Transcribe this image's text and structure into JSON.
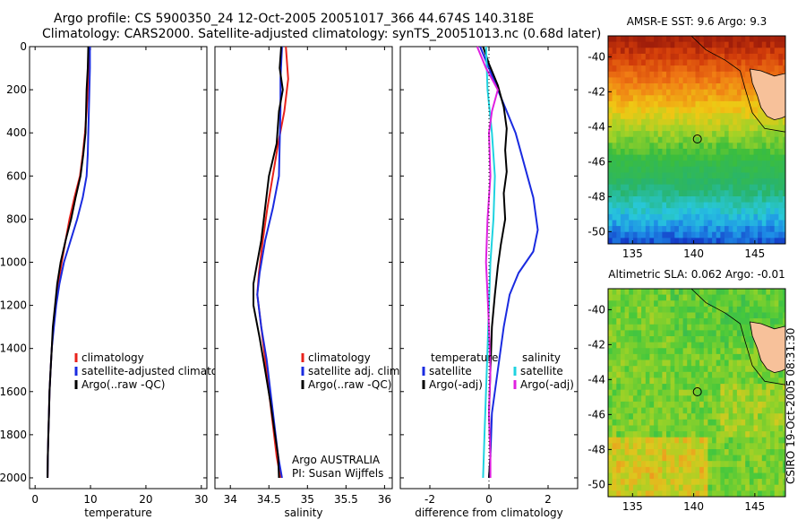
{
  "header": {
    "title_line1": "Argo profile: CS 5900350_24 12-Oct-2005 20051017_366 44.674S 140.318E",
    "title_line2": "Climatology: CARS2000. Satellite-adjusted climatology: synTS_20051013.nc (0.68d later)"
  },
  "colors": {
    "climatology": "#e8221b",
    "satellite": "#1a2be0",
    "argo": "#000000",
    "sat_salinity": "#1fd3e0",
    "argo_salinity": "#e020e0"
  },
  "chart_data": [
    {
      "type": "line",
      "id": "temperature",
      "xlabel": "temperature",
      "xlim": [
        -1,
        31
      ],
      "ylim": [
        0,
        2050
      ],
      "xticks": [
        0,
        10,
        20,
        30
      ],
      "yticks": [
        0,
        200,
        400,
        600,
        800,
        1000,
        1200,
        1400,
        1600,
        1800,
        2000
      ],
      "legend": [
        "climatology",
        "satellite-adjusted climatology",
        "Argo(..raw -QC)"
      ],
      "series": [
        {
          "name": "climatology",
          "color": "#e8221b",
          "points": [
            [
              9.7,
              0
            ],
            [
              9.6,
              100
            ],
            [
              9.5,
              200
            ],
            [
              9.3,
              300
            ],
            [
              9.0,
              400
            ],
            [
              8.6,
              500
            ],
            [
              8.1,
              600
            ],
            [
              7.1,
              700
            ],
            [
              6.2,
              800
            ],
            [
              5.5,
              900
            ],
            [
              4.8,
              1000
            ],
            [
              4.2,
              1100
            ],
            [
              3.7,
              1200
            ],
            [
              3.3,
              1300
            ],
            [
              3.0,
              1400
            ],
            [
              2.8,
              1500
            ],
            [
              2.6,
              1600
            ],
            [
              2.5,
              1700
            ],
            [
              2.4,
              1800
            ],
            [
              2.3,
              1900
            ],
            [
              2.25,
              2000
            ]
          ]
        },
        {
          "name": "satellite-adjusted climatology",
          "color": "#1a2be0",
          "points": [
            [
              9.9,
              0
            ],
            [
              9.9,
              100
            ],
            [
              9.8,
              200
            ],
            [
              9.7,
              300
            ],
            [
              9.6,
              400
            ],
            [
              9.5,
              500
            ],
            [
              9.3,
              600
            ],
            [
              8.6,
              700
            ],
            [
              7.6,
              800
            ],
            [
              6.4,
              900
            ],
            [
              5.2,
              1000
            ],
            [
              4.4,
              1100
            ],
            [
              3.8,
              1200
            ],
            [
              3.4,
              1300
            ],
            [
              3.0,
              1400
            ],
            [
              2.8,
              1500
            ],
            [
              2.6,
              1600
            ],
            [
              2.5,
              1700
            ],
            [
              2.4,
              1800
            ],
            [
              2.3,
              1900
            ],
            [
              2.25,
              2000
            ]
          ]
        },
        {
          "name": "Argo(..raw -QC)",
          "color": "#000000",
          "points": [
            [
              9.6,
              0
            ],
            [
              9.5,
              100
            ],
            [
              9.3,
              200
            ],
            [
              9.2,
              300
            ],
            [
              9.1,
              400
            ],
            [
              8.7,
              500
            ],
            [
              8.2,
              600
            ],
            [
              7.3,
              700
            ],
            [
              6.5,
              800
            ],
            [
              5.5,
              900
            ],
            [
              4.6,
              1000
            ],
            [
              4.0,
              1100
            ],
            [
              3.6,
              1200
            ],
            [
              3.2,
              1300
            ],
            [
              3.0,
              1400
            ],
            [
              2.8,
              1500
            ],
            [
              2.6,
              1600
            ],
            [
              2.5,
              1700
            ],
            [
              2.4,
              1800
            ],
            [
              2.3,
              1900
            ],
            [
              2.25,
              2000
            ]
          ]
        }
      ]
    },
    {
      "type": "line",
      "id": "salinity",
      "xlabel": "salinity",
      "xlim": [
        33.8,
        36.1
      ],
      "ylim": [
        0,
        2050
      ],
      "xticks": [
        34,
        34.5,
        35,
        35.5,
        36
      ],
      "legend": [
        "climatology",
        "satellite adj. clim.",
        "Argo(..raw -QC)"
      ],
      "annotation": [
        "Argo AUSTRALIA",
        "PI: Susan Wijffels"
      ],
      "series": [
        {
          "name": "climatology",
          "color": "#e8221b",
          "points": [
            [
              34.72,
              0
            ],
            [
              34.75,
              150
            ],
            [
              34.7,
              300
            ],
            [
              34.62,
              450
            ],
            [
              34.55,
              600
            ],
            [
              34.48,
              750
            ],
            [
              34.42,
              900
            ],
            [
              34.37,
              1050
            ],
            [
              34.35,
              1150
            ],
            [
              34.4,
              1300
            ],
            [
              34.45,
              1450
            ],
            [
              34.5,
              1600
            ],
            [
              34.55,
              1750
            ],
            [
              34.6,
              1900
            ],
            [
              34.65,
              2000
            ]
          ]
        },
        {
          "name": "satellite adj. clim.",
          "color": "#1a2be0",
          "points": [
            [
              34.67,
              0
            ],
            [
              34.65,
              150
            ],
            [
              34.65,
              300
            ],
            [
              34.64,
              450
            ],
            [
              34.63,
              600
            ],
            [
              34.55,
              750
            ],
            [
              34.45,
              900
            ],
            [
              34.38,
              1050
            ],
            [
              34.35,
              1150
            ],
            [
              34.4,
              1300
            ],
            [
              34.47,
              1450
            ],
            [
              34.52,
              1600
            ],
            [
              34.57,
              1750
            ],
            [
              34.62,
              1900
            ],
            [
              34.67,
              2000
            ]
          ]
        },
        {
          "name": "Argo(..raw -QC)",
          "color": "#000000",
          "points": [
            [
              34.66,
              0
            ],
            [
              34.64,
              100
            ],
            [
              34.68,
              200
            ],
            [
              34.63,
              300
            ],
            [
              34.6,
              450
            ],
            [
              34.5,
              600
            ],
            [
              34.45,
              750
            ],
            [
              34.4,
              900
            ],
            [
              34.35,
              1000
            ],
            [
              34.3,
              1100
            ],
            [
              34.3,
              1200
            ],
            [
              34.38,
              1350
            ],
            [
              34.45,
              1500
            ],
            [
              34.52,
              1650
            ],
            [
              34.58,
              1800
            ],
            [
              34.62,
              1900
            ],
            [
              34.63,
              2000
            ]
          ]
        }
      ]
    },
    {
      "type": "line",
      "id": "difference",
      "xlabel": "difference from climatology",
      "xlim": [
        -3,
        3
      ],
      "ylim": [
        0,
        2050
      ],
      "xticks": [
        -2,
        0,
        2
      ],
      "legend_left_title": "temperature",
      "legend_right_title": "salinity",
      "legend_left": [
        "satellite",
        "Argo(-adj)"
      ],
      "legend_right": [
        "satellite",
        "Argo(-adj)"
      ],
      "series": [
        {
          "name": "temperature satellite",
          "color": "#1a2be0",
          "points": [
            [
              -0.3,
              0
            ],
            [
              0.0,
              100
            ],
            [
              0.3,
              200
            ],
            [
              0.6,
              300
            ],
            [
              0.9,
              400
            ],
            [
              1.1,
              500
            ],
            [
              1.3,
              600
            ],
            [
              1.5,
              700
            ],
            [
              1.65,
              850
            ],
            [
              1.5,
              950
            ],
            [
              1.0,
              1050
            ],
            [
              0.7,
              1150
            ],
            [
              0.5,
              1300
            ],
            [
              0.3,
              1500
            ],
            [
              0.1,
              1700
            ],
            [
              0.05,
              1900
            ],
            [
              0.0,
              2000
            ]
          ]
        },
        {
          "name": "temperature Argo(-adj)",
          "color": "#000000",
          "points": [
            [
              -0.2,
              0
            ],
            [
              0.0,
              80
            ],
            [
              0.3,
              180
            ],
            [
              0.5,
              280
            ],
            [
              0.6,
              380
            ],
            [
              0.55,
              480
            ],
            [
              0.6,
              580
            ],
            [
              0.5,
              680
            ],
            [
              0.55,
              800
            ],
            [
              0.4,
              920
            ],
            [
              0.3,
              1020
            ],
            [
              0.2,
              1150
            ],
            [
              0.1,
              1300
            ],
            [
              0.05,
              1500
            ],
            [
              0.0,
              1700
            ],
            [
              0.05,
              1900
            ],
            [
              0.0,
              2000
            ]
          ]
        },
        {
          "name": "salinity satellite",
          "color": "#1fd3e0",
          "points": [
            [
              -0.1,
              0
            ],
            [
              -0.05,
              200
            ],
            [
              0.1,
              400
            ],
            [
              0.2,
              600
            ],
            [
              0.15,
              800
            ],
            [
              0.05,
              1000
            ],
            [
              0.0,
              1200
            ],
            [
              -0.05,
              1400
            ],
            [
              -0.1,
              1600
            ],
            [
              -0.15,
              1800
            ],
            [
              -0.2,
              2000
            ]
          ]
        },
        {
          "name": "salinity Argo(-adj)",
          "color": "#e020e0",
          "points": [
            [
              -0.4,
              0
            ],
            [
              -0.1,
              100
            ],
            [
              0.3,
              200
            ],
            [
              0.1,
              300
            ],
            [
              0.0,
              400
            ],
            [
              0.05,
              600
            ],
            [
              -0.05,
              800
            ],
            [
              -0.1,
              1000
            ],
            [
              -0.05,
              1150
            ],
            [
              0.0,
              1300
            ],
            [
              0.05,
              1500
            ],
            [
              0.0,
              1700
            ],
            [
              0.05,
              1900
            ],
            [
              0.05,
              2000
            ]
          ]
        }
      ]
    },
    {
      "type": "heatmap",
      "id": "sst-map",
      "title": "AMSR-E SST: 9.6 Argo: 9.3",
      "xlim": [
        133,
        147.5
      ],
      "ylim": [
        -50.7,
        -38.8
      ],
      "xticks": [
        135,
        140,
        145
      ],
      "yticks": [
        -40,
        -42,
        -44,
        -46,
        -48,
        -50
      ],
      "marker": [
        140.3,
        -44.7
      ]
    },
    {
      "type": "heatmap",
      "id": "sla-map",
      "title": "Altimetric SLA: 0.062 Argo: -0.01",
      "xlim": [
        133,
        147.5
      ],
      "ylim": [
        -50.7,
        -38.8
      ],
      "xticks": [
        135,
        140,
        145
      ],
      "yticks": [
        -40,
        -42,
        -44,
        -46,
        -48,
        -50
      ],
      "marker": [
        140.3,
        -44.7
      ]
    }
  ],
  "footer": {
    "vertical_label": "CSIRO 19-Oct-2005 08:31:30"
  }
}
